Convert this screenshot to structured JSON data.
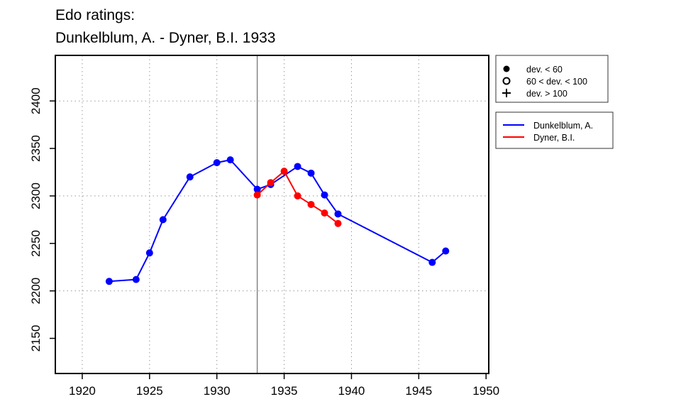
{
  "chart_data": {
    "type": "line",
    "title": "Edo ratings:",
    "subtitle": "Dunkelblum, A. - Dyner, B.I. 1933",
    "xlabel": "",
    "ylabel": "",
    "xlim": [
      1918,
      1950.2
    ],
    "ylim": [
      2113,
      2448
    ],
    "x_ticks": [
      1920,
      1925,
      1930,
      1935,
      1940,
      1945,
      1950
    ],
    "y_ticks": [
      2150,
      2200,
      2250,
      2300,
      2350,
      2400
    ],
    "grid_x": [
      1920,
      1925,
      1930,
      1935,
      1940,
      1945
    ],
    "grid_y": [
      2200,
      2300,
      2400
    ],
    "grid": "dotted",
    "marker_line_x": 1933,
    "series": [
      {
        "name": "Dunkelblum, A.",
        "color": "#0000ff",
        "x": [
          1922,
          1924,
          1925,
          1926,
          1928,
          1930,
          1931,
          1933,
          1934,
          1936,
          1937,
          1938,
          1939,
          1946,
          1947
        ],
        "values": [
          2210,
          2212,
          2240,
          2275,
          2320,
          2335,
          2338,
          2307,
          2312,
          2331,
          2324,
          2301,
          2281,
          2230,
          2242
        ]
      },
      {
        "name": "Dyner, B.I.",
        "color": "#ff0000",
        "x": [
          1933,
          1934,
          1935,
          1936,
          1937,
          1938,
          1939
        ],
        "values": [
          2301,
          2314,
          2326,
          2300,
          2291,
          2282,
          2271
        ]
      }
    ],
    "deviation_legend": {
      "placement": "top-right",
      "entries": [
        {
          "symbol": "filled-circle-icon",
          "label": "dev. < 60"
        },
        {
          "symbol": "open-circle-icon",
          "label": "60 < dev. < 100"
        },
        {
          "symbol": "plus-icon",
          "label": "dev. > 100"
        }
      ]
    },
    "series_legend": {
      "placement": "right"
    }
  }
}
